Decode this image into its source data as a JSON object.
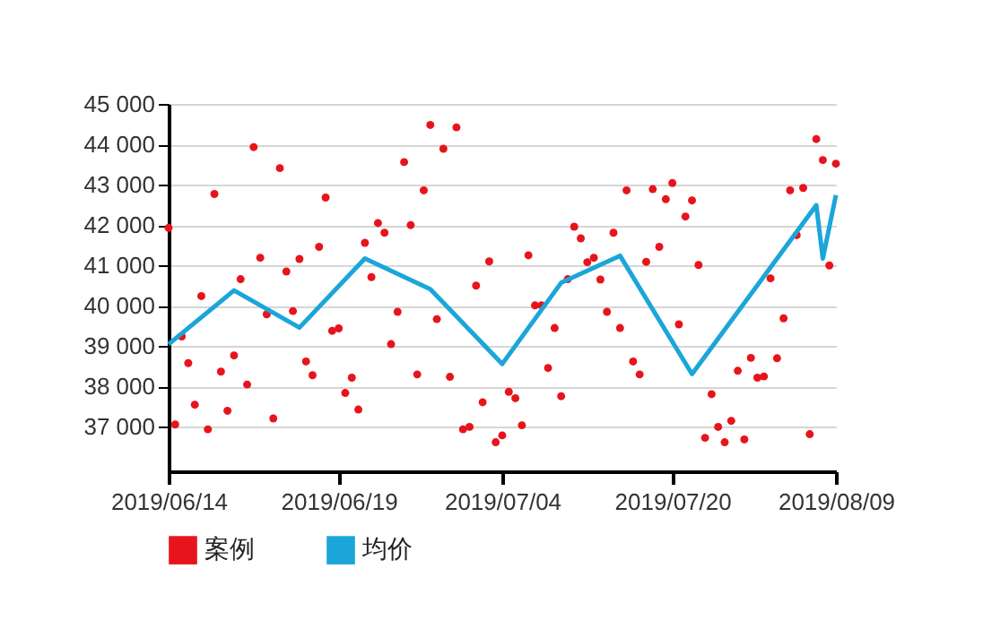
{
  "chart_data": {
    "type": "scatter",
    "categories": [
      "2019/06/14",
      null,
      null,
      null,
      null,
      null,
      null,
      null,
      null,
      null,
      null,
      null,
      null,
      null,
      null,
      null,
      null,
      null,
      null,
      null,
      null,
      null,
      null,
      null,
      null,
      null,
      "2019/06/19",
      null,
      null,
      null,
      null,
      null,
      null,
      null,
      null,
      null,
      null,
      null,
      null,
      null,
      null,
      null,
      null,
      null,
      null,
      null,
      null,
      null,
      null,
      null,
      null,
      "2019/07/04",
      null,
      null,
      null,
      null,
      null,
      null,
      null,
      null,
      null,
      null,
      null,
      null,
      null,
      null,
      null,
      null,
      null,
      null,
      null,
      null,
      null,
      null,
      null,
      null,
      null,
      "2019/07/20",
      null,
      null,
      null,
      null,
      null,
      null,
      null,
      null,
      null,
      null,
      null,
      null,
      null,
      null,
      null,
      null,
      null,
      null,
      null,
      null,
      null,
      null,
      null,
      null,
      "2019/08/09"
    ],
    "ylim": [
      35900,
      45000
    ],
    "yticks": [
      {
        "value": 37000,
        "label": "37 000"
      },
      {
        "value": 38000,
        "label": "38 000"
      },
      {
        "value": 39000,
        "label": "39 000"
      },
      {
        "value": 40000,
        "label": "40 000"
      },
      {
        "value": 41000,
        "label": "41 000"
      },
      {
        "value": 42000,
        "label": "42 000"
      },
      {
        "value": 43000,
        "label": "43 000"
      },
      {
        "value": 44000,
        "label": "44 000"
      },
      {
        "value": 45000,
        "label": "45 000"
      }
    ],
    "grid": "y",
    "legend": "bottom left",
    "series": [
      {
        "name": "案例",
        "color": "#e8141c",
        "marker": "circle",
        "values": [
          41930,
          37060,
          39240,
          38580,
          37550,
          40240,
          36940,
          42770,
          38370,
          37400,
          38770,
          40660,
          38050,
          43930,
          41190,
          39790,
          37210,
          43410,
          40850,
          39870,
          41160,
          38620,
          38280,
          41460,
          42680,
          39380,
          39440,
          37840,
          38220,
          37430,
          41560,
          40710,
          42050,
          41810,
          39050,
          39850,
          43560,
          42000,
          38300,
          42860,
          44480,
          39670,
          43890,
          38240,
          44420,
          36940,
          37000,
          40500,
          37610,
          41100,
          36620,
          36790,
          37870,
          37710,
          37040,
          41250,
          40010,
          40010,
          38460,
          39450,
          37760,
          40660,
          41960,
          41670,
          41080,
          41190,
          40650,
          39850,
          41810,
          39450,
          42860,
          38620,
          38300,
          41090,
          42890,
          41460,
          42640,
          43040,
          39540,
          42210,
          42610,
          41010,
          36730,
          37810,
          37000,
          36620,
          37150,
          38390,
          36690,
          38710,
          38220,
          38250,
          40680,
          38700,
          39690,
          42860,
          41750,
          42920,
          36820,
          44130,
          43610,
          41000,
          43520
        ]
      },
      {
        "name": "均价",
        "type": "line",
        "color": "#1ba6d9",
        "values": [
          39050,
          null,
          null,
          null,
          null,
          null,
          null,
          null,
          null,
          null,
          40380,
          null,
          null,
          null,
          null,
          null,
          null,
          null,
          null,
          null,
          39460,
          null,
          null,
          null,
          null,
          null,
          null,
          null,
          null,
          null,
          41170,
          null,
          null,
          null,
          null,
          null,
          null,
          null,
          null,
          null,
          40410,
          null,
          null,
          null,
          null,
          null,
          null,
          null,
          null,
          null,
          null,
          38560,
          null,
          null,
          null,
          null,
          null,
          null,
          null,
          null,
          40570,
          null,
          null,
          null,
          null,
          null,
          null,
          null,
          null,
          41240,
          null,
          null,
          null,
          null,
          null,
          null,
          null,
          null,
          null,
          null,
          38310,
          null,
          null,
          null,
          null,
          null,
          null,
          null,
          null,
          null,
          null,
          null,
          null,
          null,
          null,
          null,
          null,
          null,
          null,
          42490,
          41170,
          null,
          42740
        ]
      }
    ]
  }
}
